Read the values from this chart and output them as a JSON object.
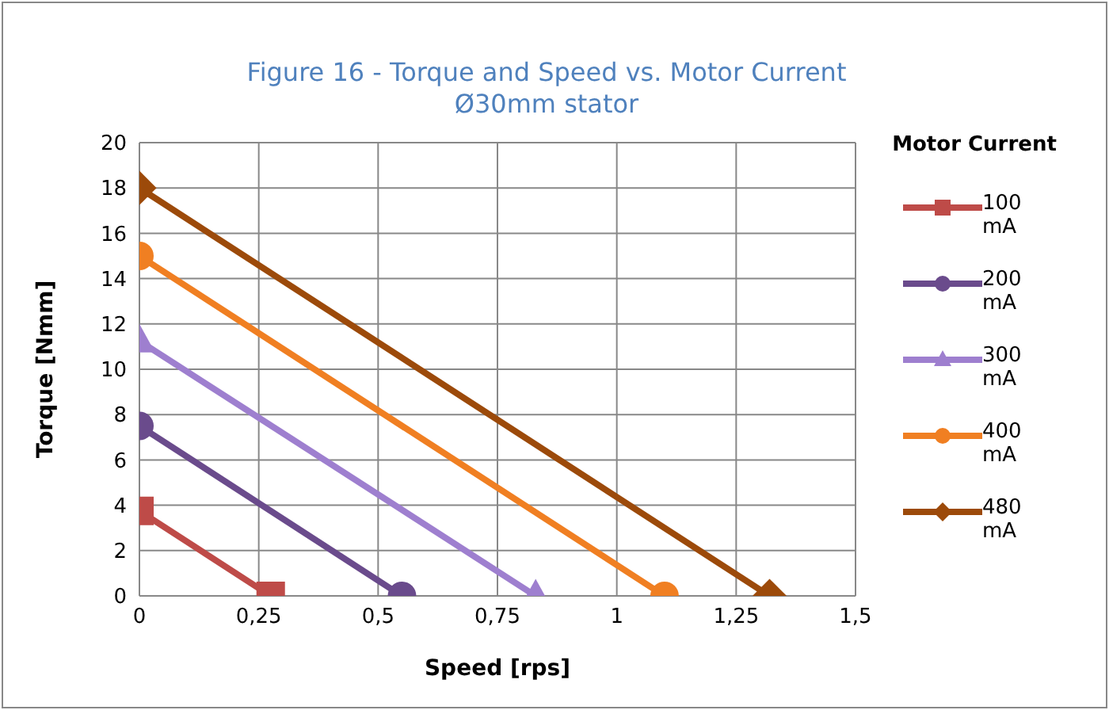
{
  "chart_data": {
    "type": "line",
    "title": "Figure 16 - Torque and Speed vs. Motor Current",
    "subtitle": "Ø30mm stator",
    "xlabel": "Speed [rps]",
    "ylabel": "Torque [Nmm]",
    "legend_title": "Motor Current",
    "legend": "right",
    "grid": true,
    "xlim": [
      0,
      1.5
    ],
    "xticks": [
      0,
      {
        "value": 0.25,
        "label": "0,25"
      },
      {
        "value": 0.5,
        "label": "0,5"
      },
      {
        "value": 0.75,
        "label": "0,75"
      },
      1,
      {
        "value": 1.25,
        "label": "1,25"
      },
      {
        "value": 1.5,
        "label": "1,5"
      }
    ],
    "ylim": [
      0,
      20
    ],
    "yticks": [
      0,
      2,
      4,
      6,
      8,
      10,
      12,
      14,
      16,
      18,
      20
    ],
    "series": [
      {
        "name": "100 mA",
        "color": "#be4b48",
        "marker": "square",
        "x": [
          0,
          0.275
        ],
        "values": [
          3.75,
          0
        ]
      },
      {
        "name": "200 mA",
        "color": "#6a4b8c",
        "marker": "circle",
        "x": [
          0,
          0.55
        ],
        "values": [
          7.5,
          0
        ]
      },
      {
        "name": "300 mA",
        "color": "#9e7fcf",
        "marker": "triangle",
        "x": [
          0,
          0.83
        ],
        "values": [
          11.25,
          0
        ]
      },
      {
        "name": "400 mA",
        "color": "#f07f22",
        "marker": "circle",
        "x": [
          0,
          1.1
        ],
        "values": [
          15,
          0
        ]
      },
      {
        "name": "480 mA",
        "color": "#9c4a0a",
        "marker": "diamond",
        "x": [
          0,
          1.32
        ],
        "values": [
          18,
          0
        ]
      }
    ]
  }
}
